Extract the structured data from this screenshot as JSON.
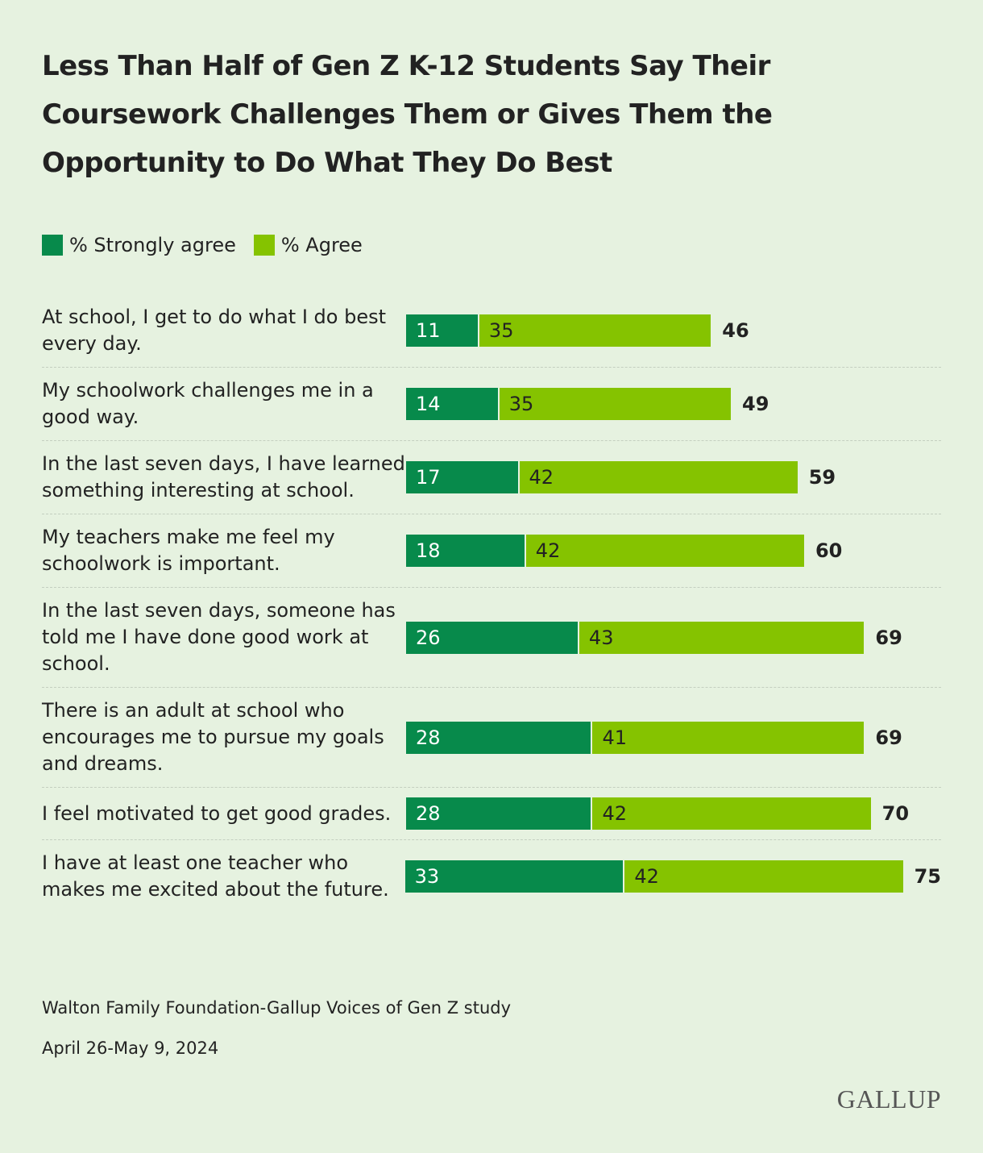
{
  "chart_data": {
    "type": "stacked-bar",
    "title": "Less Than Half of Gen Z K-12 Students Say Their Coursework Challenges Them or Gives Them the Opportunity to Do What They Do Best",
    "categories": [
      "At school, I get to do what I do best every day.",
      "My schoolwork challenges me in a good way.",
      "In the last seven days, I have learned something interesting at school.",
      "My teachers make me feel my schoolwork is important.",
      "In the last seven days, someone has told me I have done good work at school.",
      "There is an adult at school who encourages me to pursue my goals and dreams.",
      "I feel motivated to get good grades.",
      "I have at least one teacher who makes me excited about the future."
    ],
    "series": [
      {
        "name": "% Strongly agree",
        "color": "#078a4b",
        "values": [
          11,
          14,
          17,
          18,
          26,
          28,
          28,
          33
        ]
      },
      {
        "name": "% Agree",
        "color": "#85c300",
        "values": [
          35,
          35,
          42,
          42,
          43,
          41,
          42,
          42
        ]
      }
    ],
    "totals": [
      46,
      49,
      59,
      60,
      69,
      69,
      70,
      75
    ],
    "source": "Walton Family Foundation-Gallup Voices of Gen Z study",
    "date": "April 26-May 9, 2024",
    "logo": "GALLUP"
  }
}
